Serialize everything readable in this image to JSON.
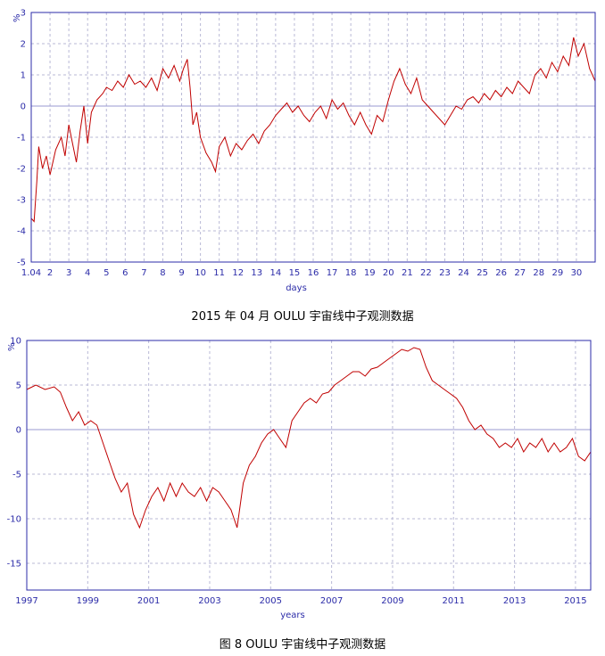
{
  "colors": {
    "frame": "#2b2ba8",
    "grid": "#b9b9d6",
    "zero_line": "#9a9ad0",
    "series": "#c00000"
  },
  "chart_data": [
    {
      "type": "line",
      "unit_label": "%",
      "xlabel": "days",
      "x_tick_labels": [
        "1.04",
        "2",
        "3",
        "4",
        "5",
        "6",
        "7",
        "8",
        "9",
        "10",
        "11",
        "12",
        "13",
        "14",
        "15",
        "16",
        "17",
        "18",
        "19",
        "20",
        "21",
        "22",
        "23",
        "24",
        "25",
        "26",
        "27",
        "28",
        "29",
        "30"
      ],
      "y_ticks": [
        3,
        2,
        1,
        0,
        -1,
        -2,
        -3,
        -4,
        -5
      ],
      "ylim": [
        -5,
        3
      ],
      "xlim": [
        1,
        31
      ],
      "grid": true,
      "caption": "2015 年 04 月 OULU 宇宙线中子观测数据",
      "series": [
        {
          "points": [
            [
              1.0,
              -3.6
            ],
            [
              1.15,
              -3.7
            ],
            [
              1.3,
              -2.4
            ],
            [
              1.4,
              -1.3
            ],
            [
              1.6,
              -2.0
            ],
            [
              1.8,
              -1.6
            ],
            [
              2.0,
              -2.2
            ],
            [
              2.3,
              -1.4
            ],
            [
              2.6,
              -1.0
            ],
            [
              2.8,
              -1.6
            ],
            [
              3.0,
              -0.6
            ],
            [
              3.2,
              -1.2
            ],
            [
              3.4,
              -1.8
            ],
            [
              3.6,
              -0.8
            ],
            [
              3.8,
              0.0
            ],
            [
              4.0,
              -1.2
            ],
            [
              4.2,
              -0.2
            ],
            [
              4.5,
              0.2
            ],
            [
              4.8,
              0.4
            ],
            [
              5.0,
              0.6
            ],
            [
              5.3,
              0.5
            ],
            [
              5.6,
              0.8
            ],
            [
              5.9,
              0.6
            ],
            [
              6.2,
              1.0
            ],
            [
              6.5,
              0.7
            ],
            [
              6.8,
              0.8
            ],
            [
              7.1,
              0.6
            ],
            [
              7.4,
              0.9
            ],
            [
              7.7,
              0.5
            ],
            [
              8.0,
              1.2
            ],
            [
              8.3,
              0.9
            ],
            [
              8.6,
              1.3
            ],
            [
              8.9,
              0.8
            ],
            [
              9.1,
              1.2
            ],
            [
              9.3,
              1.5
            ],
            [
              9.45,
              0.6
            ],
            [
              9.6,
              -0.6
            ],
            [
              9.8,
              -0.2
            ],
            [
              10.0,
              -1.0
            ],
            [
              10.3,
              -1.5
            ],
            [
              10.6,
              -1.8
            ],
            [
              10.8,
              -2.1
            ],
            [
              11.0,
              -1.3
            ],
            [
              11.3,
              -1.0
            ],
            [
              11.6,
              -1.6
            ],
            [
              11.9,
              -1.2
            ],
            [
              12.2,
              -1.4
            ],
            [
              12.5,
              -1.1
            ],
            [
              12.8,
              -0.9
            ],
            [
              13.1,
              -1.2
            ],
            [
              13.4,
              -0.8
            ],
            [
              13.7,
              -0.6
            ],
            [
              14.0,
              -0.3
            ],
            [
              14.3,
              -0.1
            ],
            [
              14.6,
              0.1
            ],
            [
              14.9,
              -0.2
            ],
            [
              15.2,
              0.0
            ],
            [
              15.5,
              -0.3
            ],
            [
              15.8,
              -0.5
            ],
            [
              16.1,
              -0.2
            ],
            [
              16.4,
              0.0
            ],
            [
              16.7,
              -0.4
            ],
            [
              17.0,
              0.2
            ],
            [
              17.3,
              -0.1
            ],
            [
              17.6,
              0.1
            ],
            [
              17.9,
              -0.3
            ],
            [
              18.2,
              -0.6
            ],
            [
              18.5,
              -0.2
            ],
            [
              18.8,
              -0.6
            ],
            [
              19.1,
              -0.9
            ],
            [
              19.4,
              -0.3
            ],
            [
              19.7,
              -0.5
            ],
            [
              20.0,
              0.2
            ],
            [
              20.3,
              0.8
            ],
            [
              20.6,
              1.2
            ],
            [
              20.9,
              0.7
            ],
            [
              21.2,
              0.4
            ],
            [
              21.5,
              0.9
            ],
            [
              21.8,
              0.2
            ],
            [
              22.1,
              0.0
            ],
            [
              22.4,
              -0.2
            ],
            [
              22.7,
              -0.4
            ],
            [
              23.0,
              -0.6
            ],
            [
              23.3,
              -0.3
            ],
            [
              23.6,
              0.0
            ],
            [
              23.9,
              -0.1
            ],
            [
              24.2,
              0.2
            ],
            [
              24.5,
              0.3
            ],
            [
              24.8,
              0.1
            ],
            [
              25.1,
              0.4
            ],
            [
              25.4,
              0.2
            ],
            [
              25.7,
              0.5
            ],
            [
              26.0,
              0.3
            ],
            [
              26.3,
              0.6
            ],
            [
              26.6,
              0.4
            ],
            [
              26.9,
              0.8
            ],
            [
              27.2,
              0.6
            ],
            [
              27.5,
              0.4
            ],
            [
              27.8,
              1.0
            ],
            [
              28.1,
              1.2
            ],
            [
              28.4,
              0.9
            ],
            [
              28.7,
              1.4
            ],
            [
              29.0,
              1.1
            ],
            [
              29.3,
              1.6
            ],
            [
              29.6,
              1.3
            ],
            [
              29.85,
              2.2
            ],
            [
              30.1,
              1.6
            ],
            [
              30.4,
              2.0
            ],
            [
              30.7,
              1.2
            ],
            [
              31.0,
              0.8
            ]
          ]
        }
      ]
    },
    {
      "type": "line",
      "unit_label": "%",
      "xlabel": "years",
      "x_tick_labels": [
        "1997",
        "1999",
        "2001",
        "2003",
        "2005",
        "2007",
        "2009",
        "2011",
        "2013",
        "2015"
      ],
      "x_tick_values": [
        1997,
        1999,
        2001,
        2003,
        2005,
        2007,
        2009,
        2011,
        2013,
        2015
      ],
      "y_ticks": [
        10,
        5,
        0,
        -5,
        -10,
        -15
      ],
      "ylim": [
        -18,
        10
      ],
      "xlim": [
        1997,
        2015.5
      ],
      "grid": true,
      "caption": "图 8   OULU 宇宙线中子观测数据",
      "series": [
        {
          "points": [
            [
              1997.0,
              4.5
            ],
            [
              1997.3,
              5.0
            ],
            [
              1997.6,
              4.5
            ],
            [
              1997.9,
              4.8
            ],
            [
              1998.1,
              4.2
            ],
            [
              1998.3,
              2.5
            ],
            [
              1998.5,
              1.0
            ],
            [
              1998.7,
              2.0
            ],
            [
              1998.9,
              0.5
            ],
            [
              1999.1,
              1.0
            ],
            [
              1999.3,
              0.5
            ],
            [
              1999.5,
              -1.5
            ],
            [
              1999.7,
              -3.5
            ],
            [
              1999.9,
              -5.5
            ],
            [
              2000.1,
              -7.0
            ],
            [
              2000.3,
              -6.0
            ],
            [
              2000.5,
              -9.5
            ],
            [
              2000.7,
              -11.0
            ],
            [
              2000.9,
              -9.0
            ],
            [
              2001.1,
              -7.5
            ],
            [
              2001.3,
              -6.5
            ],
            [
              2001.5,
              -8.0
            ],
            [
              2001.7,
              -6.0
            ],
            [
              2001.9,
              -7.5
            ],
            [
              2002.1,
              -6.0
            ],
            [
              2002.3,
              -7.0
            ],
            [
              2002.5,
              -7.5
            ],
            [
              2002.7,
              -6.5
            ],
            [
              2002.9,
              -8.0
            ],
            [
              2003.1,
              -6.5
            ],
            [
              2003.3,
              -7.0
            ],
            [
              2003.5,
              -8.0
            ],
            [
              2003.7,
              -9.0
            ],
            [
              2003.9,
              -11.0
            ],
            [
              2004.1,
              -6.0
            ],
            [
              2004.3,
              -4.0
            ],
            [
              2004.5,
              -3.0
            ],
            [
              2004.7,
              -1.5
            ],
            [
              2004.9,
              -0.5
            ],
            [
              2005.1,
              0.0
            ],
            [
              2005.3,
              -1.0
            ],
            [
              2005.5,
              -2.0
            ],
            [
              2005.7,
              1.0
            ],
            [
              2005.9,
              2.0
            ],
            [
              2006.1,
              3.0
            ],
            [
              2006.3,
              3.5
            ],
            [
              2006.5,
              3.0
            ],
            [
              2006.7,
              4.0
            ],
            [
              2006.9,
              4.2
            ],
            [
              2007.1,
              5.0
            ],
            [
              2007.3,
              5.5
            ],
            [
              2007.5,
              6.0
            ],
            [
              2007.7,
              6.5
            ],
            [
              2007.9,
              6.5
            ],
            [
              2008.1,
              6.0
            ],
            [
              2008.3,
              6.8
            ],
            [
              2008.5,
              7.0
            ],
            [
              2008.7,
              7.5
            ],
            [
              2008.9,
              8.0
            ],
            [
              2009.1,
              8.5
            ],
            [
              2009.3,
              9.0
            ],
            [
              2009.5,
              8.8
            ],
            [
              2009.7,
              9.2
            ],
            [
              2009.9,
              9.0
            ],
            [
              2010.1,
              7.0
            ],
            [
              2010.3,
              5.5
            ],
            [
              2010.5,
              5.0
            ],
            [
              2010.7,
              4.5
            ],
            [
              2010.9,
              4.0
            ],
            [
              2011.1,
              3.5
            ],
            [
              2011.3,
              2.5
            ],
            [
              2011.5,
              1.0
            ],
            [
              2011.7,
              0.0
            ],
            [
              2011.9,
              0.5
            ],
            [
              2012.1,
              -0.5
            ],
            [
              2012.3,
              -1.0
            ],
            [
              2012.5,
              -2.0
            ],
            [
              2012.7,
              -1.5
            ],
            [
              2012.9,
              -2.0
            ],
            [
              2013.1,
              -1.0
            ],
            [
              2013.3,
              -2.5
            ],
            [
              2013.5,
              -1.5
            ],
            [
              2013.7,
              -2.0
            ],
            [
              2013.9,
              -1.0
            ],
            [
              2014.1,
              -2.5
            ],
            [
              2014.3,
              -1.5
            ],
            [
              2014.5,
              -2.5
            ],
            [
              2014.7,
              -2.0
            ],
            [
              2014.9,
              -1.0
            ],
            [
              2015.1,
              -3.0
            ],
            [
              2015.3,
              -3.5
            ],
            [
              2015.5,
              -2.5
            ]
          ]
        }
      ]
    }
  ]
}
